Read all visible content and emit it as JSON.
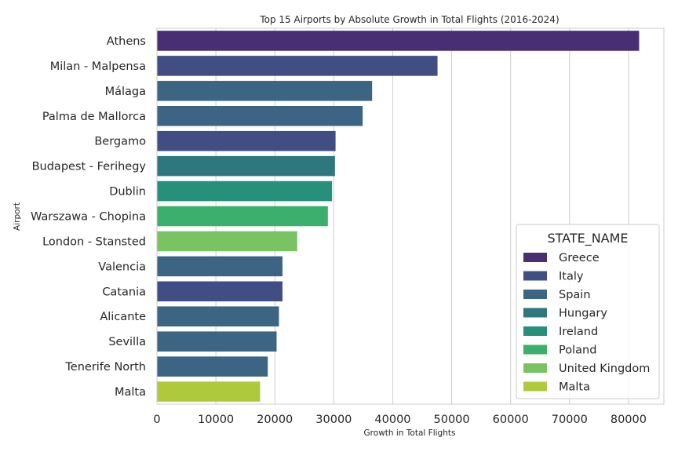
{
  "chart_data": {
    "type": "bar",
    "orientation": "horizontal",
    "title": "Top 15 Airports by Absolute Growth in Total Flights (2016-2024)",
    "xlabel": "Growth in Total Flights",
    "ylabel": "Airport",
    "xlim": [
      0,
      86000
    ],
    "xticks": [
      0,
      10000,
      20000,
      30000,
      40000,
      50000,
      60000,
      70000,
      80000
    ],
    "grid": "vertical",
    "legend_position": "lower-right",
    "legend_title": "STATE_NAME",
    "legend": [
      {
        "name": "Greece",
        "color": "#482f73"
      },
      {
        "name": "Italy",
        "color": "#414e84"
      },
      {
        "name": "Spain",
        "color": "#3b6583"
      },
      {
        "name": "Hungary",
        "color": "#2f777f"
      },
      {
        "name": "Ireland",
        "color": "#27907b"
      },
      {
        "name": "Poland",
        "color": "#3daf6c"
      },
      {
        "name": "United Kingdom",
        "color": "#79c363"
      },
      {
        "name": "Malta",
        "color": "#aec93c"
      }
    ],
    "categories": [
      "Athens",
      "Milan - Malpensa",
      "Málaga",
      "Palma de Mallorca",
      "Bergamo",
      "Budapest - Ferihegy",
      "Dublin",
      "Warszawa - Chopina",
      "London - Stansted",
      "Valencia",
      "Catania",
      "Alicante",
      "Sevilla",
      "Tenerife North",
      "Malta"
    ],
    "values": [
      81800,
      47600,
      36500,
      34900,
      30300,
      30200,
      29700,
      29000,
      23800,
      21300,
      21300,
      20700,
      20300,
      18800,
      17500
    ],
    "states": [
      "Greece",
      "Italy",
      "Spain",
      "Spain",
      "Italy",
      "Hungary",
      "Ireland",
      "Poland",
      "United Kingdom",
      "Spain",
      "Italy",
      "Spain",
      "Spain",
      "Spain",
      "Malta"
    ]
  }
}
